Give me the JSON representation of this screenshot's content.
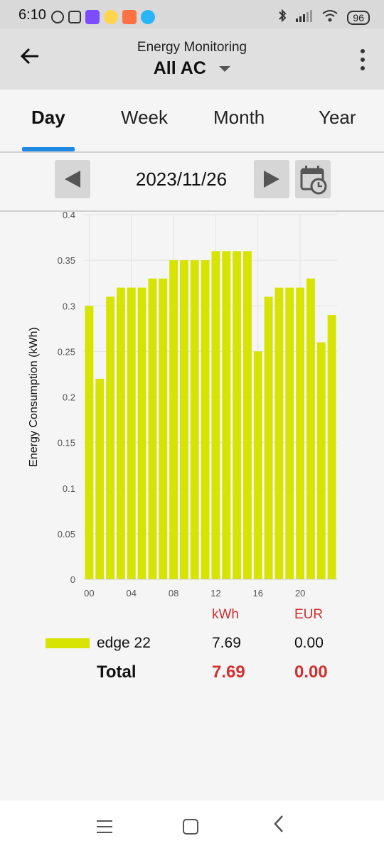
{
  "status_bar": {
    "time": "6:10",
    "battery": "96",
    "icons": [
      "alarm-icon",
      "nfc-icon",
      "viber-icon",
      "bee-icon",
      "mail-icon",
      "telegram-icon",
      "bluetooth-icon",
      "signal-icon",
      "wifi-icon",
      "battery-icon"
    ]
  },
  "app_bar": {
    "subtitle": "Energy Monitoring",
    "title": "All AC"
  },
  "tabs": [
    {
      "label": "Day",
      "active": true
    },
    {
      "label": "Week",
      "active": false
    },
    {
      "label": "Month",
      "active": false
    },
    {
      "label": "Year",
      "active": false
    }
  ],
  "date_nav": {
    "date": "2023/11/26"
  },
  "chart_data": {
    "type": "bar",
    "ylabel": "Energy Consumption (kWh)",
    "xlabel": "",
    "ylim": [
      0,
      0.4
    ],
    "yticks": [
      "0",
      "0.05",
      "0.1",
      "0.15",
      "0.2",
      "0.25",
      "0.3",
      "0.35",
      "0.4"
    ],
    "xticks": [
      "00",
      "04",
      "08",
      "12",
      "16",
      "20"
    ],
    "categories": [
      "00",
      "01",
      "02",
      "03",
      "04",
      "05",
      "06",
      "07",
      "08",
      "09",
      "10",
      "11",
      "12",
      "13",
      "14",
      "15",
      "16",
      "17",
      "18",
      "19",
      "20",
      "21",
      "22",
      "23"
    ],
    "values": [
      0.3,
      0.22,
      0.31,
      0.32,
      0.32,
      0.32,
      0.33,
      0.33,
      0.35,
      0.35,
      0.35,
      0.35,
      0.36,
      0.36,
      0.36,
      0.36,
      0.25,
      0.31,
      0.32,
      0.32,
      0.32,
      0.33,
      0.26,
      0.29
    ],
    "bar_color": "#d7e300",
    "grid": true
  },
  "summary": {
    "kwh_header": "kWh",
    "eur_header": "EUR",
    "rows": [
      {
        "name": "edge 22",
        "kwh": "7.69",
        "eur": "0.00"
      }
    ],
    "total": {
      "label": "Total",
      "kwh": "7.69",
      "eur": "0.00"
    }
  },
  "colors": {
    "accent": "#1e88e5",
    "total": "#d32f2f",
    "bar": "#d7e300"
  }
}
